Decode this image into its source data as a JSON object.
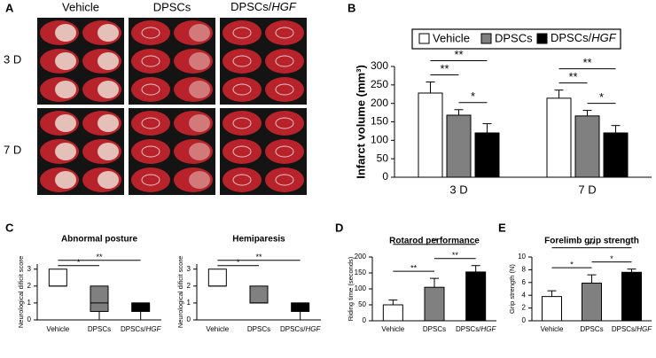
{
  "figure_a": {
    "label": "A",
    "columns": [
      "Vehicle",
      "DPSCs",
      "DPSCs/HGF"
    ],
    "rows": [
      "3 D",
      "7 D"
    ]
  },
  "chart_data": [
    {
      "type": "bar",
      "panel": "B",
      "y_label": "Infarct volume (mm³)",
      "categories": [
        "3 D",
        "7 D"
      ],
      "series": [
        {
          "name": "Vehicle",
          "color": "#ffffff",
          "values": [
            228,
            214
          ],
          "errors": [
            30,
            22
          ]
        },
        {
          "name": "DPSCs",
          "color": "#808080",
          "values": [
            168,
            166
          ],
          "errors": [
            15,
            15
          ]
        },
        {
          "name": "DPSCs/HGF",
          "color": "#000000",
          "values": [
            120,
            120
          ],
          "errors": [
            25,
            20
          ]
        }
      ],
      "ylim": [
        0,
        300
      ],
      "yticks": [
        0,
        50,
        100,
        150,
        200,
        250,
        300
      ],
      "comparisons": [
        {
          "category": 0,
          "groups": [
            0,
            2
          ],
          "text": "**"
        },
        {
          "category": 0,
          "groups": [
            0,
            1
          ],
          "text": "**"
        },
        {
          "category": 0,
          "groups": [
            1,
            2
          ],
          "text": "*"
        },
        {
          "category": 1,
          "groups": [
            0,
            2
          ],
          "text": "**"
        },
        {
          "category": 1,
          "groups": [
            0,
            1
          ],
          "text": "**"
        },
        {
          "category": 1,
          "groups": [
            1,
            2
          ],
          "text": "*"
        }
      ]
    },
    {
      "type": "box",
      "panel": "C",
      "title": "Abnormal posture",
      "y_label": "Neurological dificit score",
      "categories": [
        "Vehicle",
        "DPSCs",
        "DPSCs/HGF"
      ],
      "colors": [
        "#ffffff",
        "#808080",
        "#000000"
      ],
      "boxes": [
        {
          "min": 2,
          "q1": 2,
          "median": 2,
          "q3": 3,
          "max": 3
        },
        {
          "min": 0,
          "q1": 0.5,
          "median": 1,
          "q3": 2,
          "max": 2
        },
        {
          "min": 0,
          "q1": 0.5,
          "median": 1,
          "q3": 1,
          "max": 1
        }
      ],
      "ylim": [
        0,
        3.3
      ],
      "yticks": [
        0,
        1,
        2,
        3
      ],
      "comparisons": [
        {
          "groups": [
            0,
            1
          ],
          "text": "*"
        },
        {
          "groups": [
            0,
            2
          ],
          "text": "**"
        }
      ]
    },
    {
      "type": "box",
      "title": "Hemiparesis",
      "y_label": "Neurological dificit score",
      "categories": [
        "Vehicle",
        "DPSCs",
        "DPSCs/HGF"
      ],
      "colors": [
        "#ffffff",
        "#808080",
        "#000000"
      ],
      "boxes": [
        {
          "min": 2,
          "q1": 2,
          "median": 2,
          "q3": 3,
          "max": 3
        },
        {
          "min": 1,
          "q1": 1,
          "median": 1,
          "q3": 2,
          "max": 2
        },
        {
          "min": 0,
          "q1": 0.5,
          "median": 1,
          "q3": 1,
          "max": 1
        }
      ],
      "ylim": [
        0,
        3.3
      ],
      "yticks": [
        0,
        1,
        2,
        3
      ],
      "comparisons": [
        {
          "groups": [
            0,
            1
          ],
          "text": "*"
        },
        {
          "groups": [
            0,
            2
          ],
          "text": "**"
        }
      ]
    },
    {
      "type": "bar",
      "panel": "D",
      "title": "Rotarod performance",
      "y_label": "Riding time (seconds)",
      "categories": [
        "Vehicle",
        "DPSCs",
        "DPSCs/HGF"
      ],
      "colors": [
        "#ffffff",
        "#808080",
        "#000000"
      ],
      "values": [
        50,
        105,
        153
      ],
      "errors": [
        15,
        28,
        20
      ],
      "ylim": [
        0,
        200
      ],
      "yticks": [
        0,
        50,
        100,
        150,
        200
      ],
      "comparisons": [
        {
          "groups": [
            0,
            1
          ],
          "text": "**"
        },
        {
          "groups": [
            0,
            2
          ],
          "text": "**"
        },
        {
          "groups": [
            1,
            2
          ],
          "text": "**"
        }
      ]
    },
    {
      "type": "bar",
      "panel": "E",
      "title": "Forelimb grip strength",
      "y_label": "Grip strength (N)",
      "categories": [
        "Vehicle",
        "DPSCs",
        "DPSCs/HGF"
      ],
      "colors": [
        "#ffffff",
        "#808080",
        "#000000"
      ],
      "values": [
        3.8,
        5.9,
        7.6
      ],
      "errors": [
        0.9,
        1.3,
        0.5
      ],
      "ylim": [
        0,
        10
      ],
      "yticks": [
        0,
        2,
        4,
        6,
        8,
        10
      ],
      "comparisons": [
        {
          "groups": [
            0,
            1
          ],
          "text": "*"
        },
        {
          "groups": [
            0,
            2
          ],
          "text": "**"
        },
        {
          "groups": [
            1,
            2
          ],
          "text": "*"
        }
      ]
    }
  ]
}
